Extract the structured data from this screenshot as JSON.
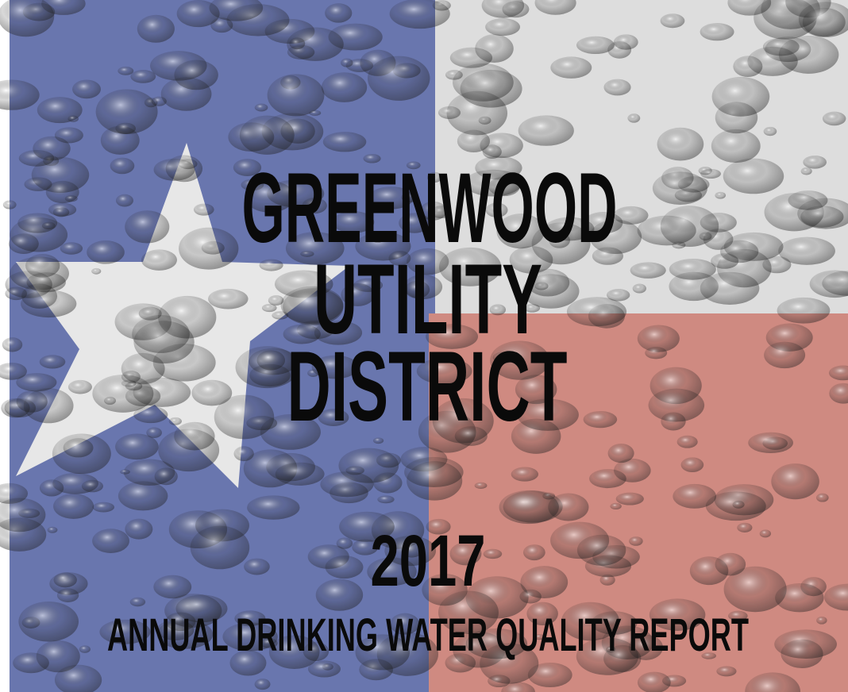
{
  "title_lines": [
    "GREENWOOD",
    "UTILITY",
    "DISTRICT"
  ],
  "year": "2017",
  "subtitle": "ANNUAL DRINKING WATER QUALITY REPORT"
}
